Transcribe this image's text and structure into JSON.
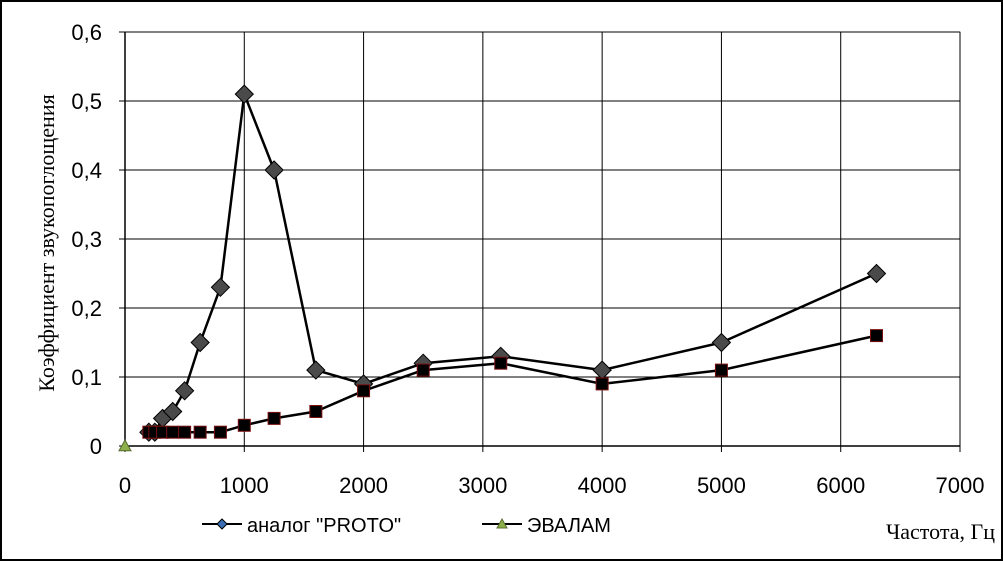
{
  "chart_data": {
    "type": "line",
    "title": "",
    "xlabel": "Частота, Гц",
    "ylabel": "Коэффициент звукопоглощения",
    "xlim": [
      0,
      7000
    ],
    "ylim": [
      0,
      0.6
    ],
    "x_ticks": [
      "0",
      "1000",
      "2000",
      "3000",
      "4000",
      "5000",
      "6000",
      "7000"
    ],
    "y_ticks": [
      "0",
      "0,1",
      "0,2",
      "0,3",
      "0,4",
      "0,5",
      "0,6"
    ],
    "grid": true,
    "legend_position": "bottom",
    "legend": [
      "аналог \"PROTO\"",
      "ЭВАЛАМ"
    ],
    "series": [
      {
        "name": "аналог \"PROTO\"",
        "marker": "diamond",
        "legend_color": "#3a6fb5",
        "point_color": "#4a4a4a",
        "x": [
          200,
          250,
          315,
          400,
          500,
          630,
          800,
          1000,
          1250,
          1600,
          2000,
          2500,
          3150,
          4000,
          5000,
          6300
        ],
        "y": [
          0.02,
          0.02,
          0.04,
          0.05,
          0.08,
          0.15,
          0.23,
          0.51,
          0.4,
          0.11,
          0.09,
          0.12,
          0.13,
          0.11,
          0.15,
          0.25
        ]
      },
      {
        "name": "ЭВАЛАМ",
        "marker": "square",
        "legend_color": "#8db04a",
        "point_color": "#000000",
        "x": [
          200,
          250,
          315,
          400,
          500,
          630,
          800,
          1000,
          1250,
          1600,
          2000,
          2500,
          3150,
          4000,
          5000,
          6300
        ],
        "y": [
          0.02,
          0.02,
          0.02,
          0.02,
          0.02,
          0.02,
          0.02,
          0.03,
          0.04,
          0.05,
          0.08,
          0.11,
          0.12,
          0.09,
          0.11,
          0.16
        ]
      },
      {
        "name": "",
        "marker": "triangle",
        "point_color": "#8db04a",
        "x": [
          0
        ],
        "y": [
          0
        ]
      }
    ]
  }
}
